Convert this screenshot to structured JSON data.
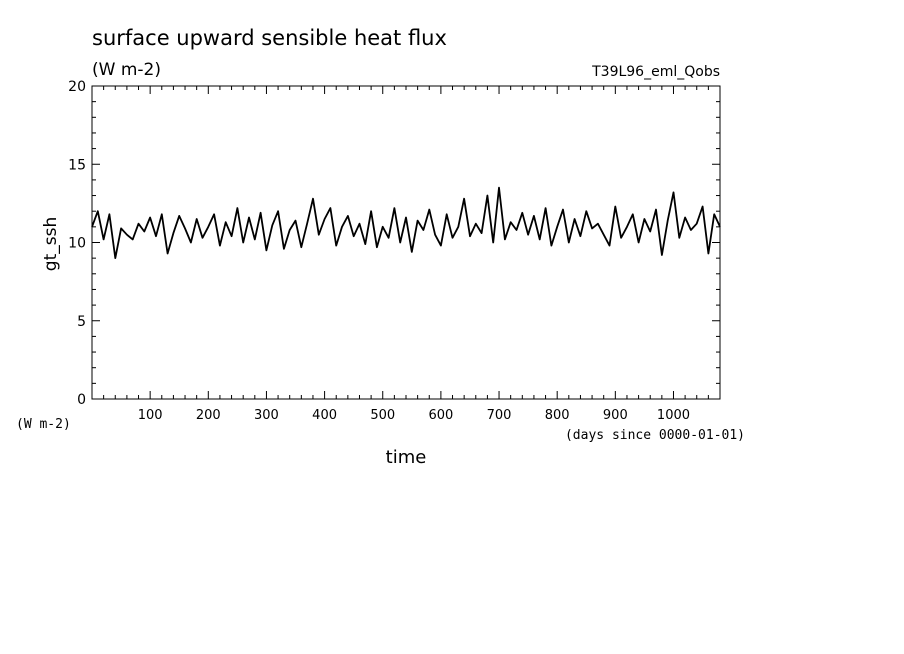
{
  "chart_data": {
    "type": "line",
    "title": "surface upward sensible heat flux",
    "subtitle": "(W m-2)",
    "experiment": "T39L96_eml_Qobs",
    "ylabel": "gt_ssh",
    "yunit": "(W m-2)",
    "xlabel": "time",
    "xunit": "(days since 0000-01-01)",
    "xlim": [
      0,
      1080
    ],
    "ylim": [
      0,
      20
    ],
    "xticks": [
      100,
      200,
      300,
      400,
      500,
      600,
      700,
      800,
      900,
      1000
    ],
    "yticks": [
      0,
      5,
      10,
      15,
      20
    ],
    "grid": false,
    "series": [
      {
        "x": [
          0,
          10,
          20,
          30,
          40,
          50,
          60,
          70,
          80,
          90,
          100,
          110,
          120,
          130,
          140,
          150,
          160,
          170,
          180,
          190,
          200,
          210,
          220,
          230,
          240,
          250,
          260,
          270,
          280,
          290,
          300,
          310,
          320,
          330,
          340,
          350,
          360,
          370,
          380,
          390,
          400,
          410,
          420,
          430,
          440,
          450,
          460,
          470,
          480,
          490,
          500,
          510,
          520,
          530,
          540,
          550,
          560,
          570,
          580,
          590,
          600,
          610,
          620,
          630,
          640,
          650,
          660,
          670,
          680,
          690,
          700,
          710,
          720,
          730,
          740,
          750,
          760,
          770,
          780,
          790,
          800,
          810,
          820,
          830,
          840,
          850,
          860,
          870,
          880,
          890,
          900,
          910,
          920,
          930,
          940,
          950,
          960,
          970,
          980,
          990,
          1000,
          1010,
          1020,
          1030,
          1040,
          1050,
          1060,
          1070,
          1080
        ],
        "y": [
          11.0,
          12.0,
          10.2,
          11.8,
          9.0,
          10.9,
          10.5,
          10.2,
          11.2,
          10.7,
          11.6,
          10.4,
          11.8,
          9.3,
          10.6,
          11.7,
          10.9,
          10.0,
          11.5,
          10.3,
          11.0,
          11.8,
          9.8,
          11.3,
          10.4,
          12.2,
          10.0,
          11.6,
          10.2,
          11.9,
          9.5,
          11.1,
          12.0,
          9.6,
          10.8,
          11.4,
          9.7,
          11.2,
          12.8,
          10.5,
          11.5,
          12.2,
          9.8,
          11.0,
          11.7,
          10.4,
          11.2,
          9.9,
          12.0,
          9.7,
          11.0,
          10.3,
          12.2,
          10.0,
          11.6,
          9.4,
          11.4,
          10.8,
          12.1,
          10.5,
          9.8,
          11.8,
          10.3,
          11.0,
          12.8,
          10.4,
          11.2,
          10.6,
          13.0,
          10.0,
          13.5,
          10.2,
          11.3,
          10.8,
          11.9,
          10.5,
          11.7,
          10.2,
          12.2,
          9.8,
          11.0,
          12.1,
          10.0,
          11.5,
          10.4,
          12.0,
          10.9,
          11.2,
          10.5,
          9.8,
          12.3,
          10.3,
          11.0,
          11.8,
          10.0,
          11.5,
          10.7,
          12.1,
          9.2,
          11.4,
          13.2,
          10.3,
          11.6,
          10.8,
          11.2,
          12.3,
          9.3,
          11.8,
          11.0
        ]
      }
    ]
  }
}
